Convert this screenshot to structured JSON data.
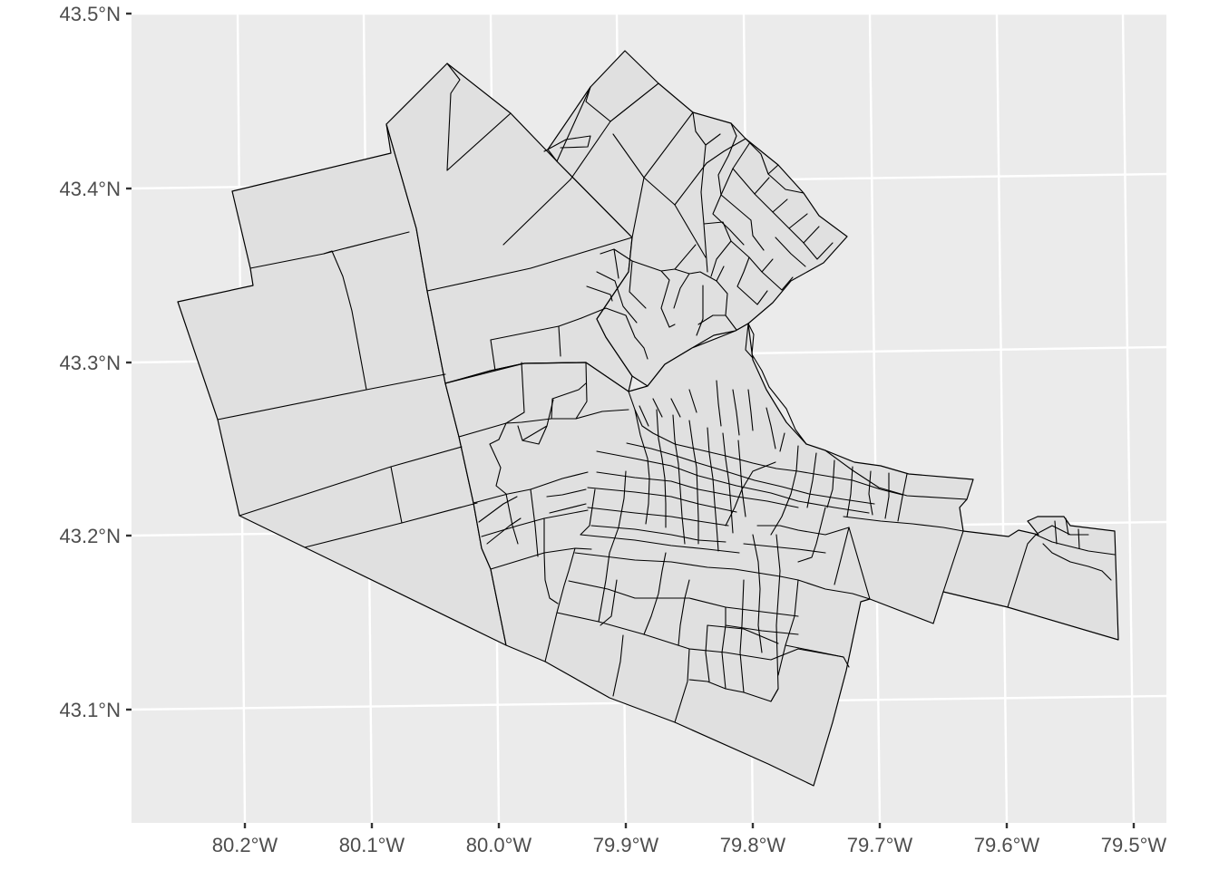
{
  "map": {
    "axis": {
      "y_ticks": [
        "43.5°N",
        "43.4°N",
        "43.3°N",
        "43.2°N",
        "43.1°N"
      ],
      "x_ticks": [
        "80.2°W",
        "80.1°W",
        "80.0°W",
        "79.9°W",
        "79.8°W",
        "79.7°W",
        "79.6°W",
        "79.5°W"
      ]
    },
    "style": {
      "panel_background": "#ebebeb",
      "gridline": "#ffffff",
      "region_fill": "#e0e0e0",
      "region_stroke": "#000000"
    }
  }
}
